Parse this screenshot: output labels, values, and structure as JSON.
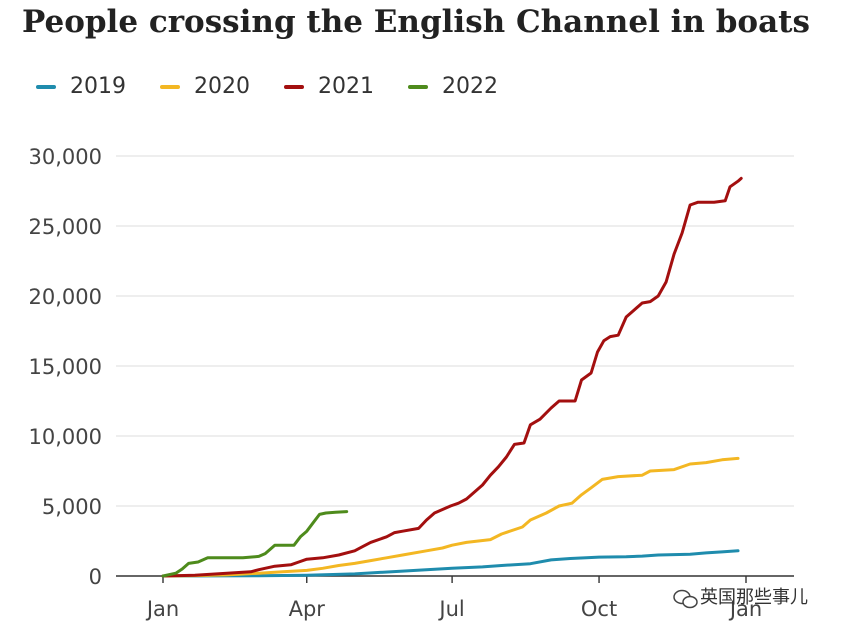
{
  "chart_data": {
    "type": "line",
    "title": "People crossing the English Channel in boats",
    "xlabel": "",
    "ylabel": "",
    "x_ticks": [
      {
        "label": "Jan",
        "day": 0
      },
      {
        "label": "Apr",
        "day": 90
      },
      {
        "label": "Jul",
        "day": 181
      },
      {
        "label": "Oct",
        "day": 273
      },
      {
        "label": "Jan",
        "day": 365
      }
    ],
    "y_ticks": [
      {
        "label": "0",
        "value": 0
      },
      {
        "label": "5,000",
        "value": 5000
      },
      {
        "label": "10,000",
        "value": 10000
      },
      {
        "label": "15,000",
        "value": 15000
      },
      {
        "label": "20,000",
        "value": 20000
      },
      {
        "label": "25,000",
        "value": 25000
      },
      {
        "label": "30,000",
        "value": 30000
      }
    ],
    "xlim": [
      0,
      365
    ],
    "ylim": [
      0,
      30000
    ],
    "grid": "horizontal",
    "legend_position": "top-left",
    "series": [
      {
        "name": "2019",
        "color": "#1f8cad",
        "points": [
          [
            0,
            0
          ],
          [
            30,
            10
          ],
          [
            60,
            20
          ],
          [
            90,
            60
          ],
          [
            120,
            150
          ],
          [
            150,
            350
          ],
          [
            181,
            550
          ],
          [
            200,
            650
          ],
          [
            212,
            750
          ],
          [
            230,
            880
          ],
          [
            243,
            1150
          ],
          [
            255,
            1250
          ],
          [
            265,
            1300
          ],
          [
            273,
            1350
          ],
          [
            290,
            1380
          ],
          [
            300,
            1420
          ],
          [
            310,
            1500
          ],
          [
            320,
            1530
          ],
          [
            330,
            1560
          ],
          [
            340,
            1650
          ],
          [
            350,
            1720
          ],
          [
            360,
            1800
          ]
        ]
      },
      {
        "name": "2020",
        "color": "#f3b723",
        "points": [
          [
            0,
            0
          ],
          [
            20,
            30
          ],
          [
            40,
            80
          ],
          [
            60,
            200
          ],
          [
            75,
            300
          ],
          [
            90,
            400
          ],
          [
            100,
            550
          ],
          [
            110,
            750
          ],
          [
            120,
            900
          ],
          [
            130,
            1100
          ],
          [
            140,
            1300
          ],
          [
            150,
            1500
          ],
          [
            165,
            1800
          ],
          [
            175,
            2000
          ],
          [
            181,
            2200
          ],
          [
            190,
            2400
          ],
          [
            205,
            2600
          ],
          [
            212,
            3000
          ],
          [
            225,
            3500
          ],
          [
            230,
            4000
          ],
          [
            240,
            4500
          ],
          [
            248,
            5000
          ],
          [
            256,
            5200
          ],
          [
            262,
            5800
          ],
          [
            268,
            6300
          ],
          [
            275,
            6900
          ],
          [
            285,
            7100
          ],
          [
            300,
            7200
          ],
          [
            305,
            7500
          ],
          [
            320,
            7600
          ],
          [
            330,
            8000
          ],
          [
            340,
            8100
          ],
          [
            350,
            8300
          ],
          [
            360,
            8400
          ]
        ]
      },
      {
        "name": "2021",
        "color": "#a30f0f",
        "points": [
          [
            0,
            0
          ],
          [
            20,
            50
          ],
          [
            40,
            200
          ],
          [
            55,
            300
          ],
          [
            60,
            450
          ],
          [
            70,
            700
          ],
          [
            80,
            800
          ],
          [
            85,
            1000
          ],
          [
            90,
            1200
          ],
          [
            100,
            1300
          ],
          [
            110,
            1500
          ],
          [
            120,
            1800
          ],
          [
            125,
            2100
          ],
          [
            130,
            2400
          ],
          [
            140,
            2800
          ],
          [
            145,
            3100
          ],
          [
            150,
            3200
          ],
          [
            160,
            3400
          ],
          [
            165,
            4000
          ],
          [
            170,
            4500
          ],
          [
            180,
            5000
          ],
          [
            185,
            5200
          ],
          [
            190,
            5500
          ],
          [
            195,
            6000
          ],
          [
            200,
            6500
          ],
          [
            205,
            7200
          ],
          [
            210,
            7800
          ],
          [
            215,
            8500
          ],
          [
            220,
            9400
          ],
          [
            226,
            9500
          ],
          [
            230,
            10800
          ],
          [
            236,
            11200
          ],
          [
            243,
            12000
          ],
          [
            248,
            12500
          ],
          [
            258,
            12500
          ],
          [
            262,
            14000
          ],
          [
            268,
            14500
          ],
          [
            272,
            16000
          ],
          [
            276,
            16800
          ],
          [
            280,
            17100
          ],
          [
            285,
            17200
          ],
          [
            290,
            18500
          ],
          [
            295,
            19000
          ],
          [
            300,
            19500
          ],
          [
            305,
            19600
          ],
          [
            310,
            20000
          ],
          [
            315,
            21000
          ],
          [
            320,
            23000
          ],
          [
            325,
            24500
          ],
          [
            330,
            26500
          ],
          [
            335,
            26700
          ],
          [
            345,
            26700
          ],
          [
            352,
            26800
          ],
          [
            355,
            27800
          ],
          [
            360,
            28200
          ],
          [
            362,
            28400
          ]
        ]
      },
      {
        "name": "2022",
        "color": "#4e8b1c",
        "points": [
          [
            0,
            0
          ],
          [
            8,
            200
          ],
          [
            12,
            500
          ],
          [
            16,
            900
          ],
          [
            22,
            1000
          ],
          [
            28,
            1300
          ],
          [
            40,
            1300
          ],
          [
            50,
            1300
          ],
          [
            60,
            1400
          ],
          [
            64,
            1600
          ],
          [
            70,
            2200
          ],
          [
            82,
            2200
          ],
          [
            86,
            2800
          ],
          [
            90,
            3200
          ],
          [
            94,
            3800
          ],
          [
            98,
            4400
          ],
          [
            102,
            4500
          ],
          [
            108,
            4550
          ],
          [
            115,
            4600
          ]
        ]
      }
    ]
  },
  "watermark": {
    "text": "英国那些事儿",
    "icon": "wechat-icon"
  }
}
